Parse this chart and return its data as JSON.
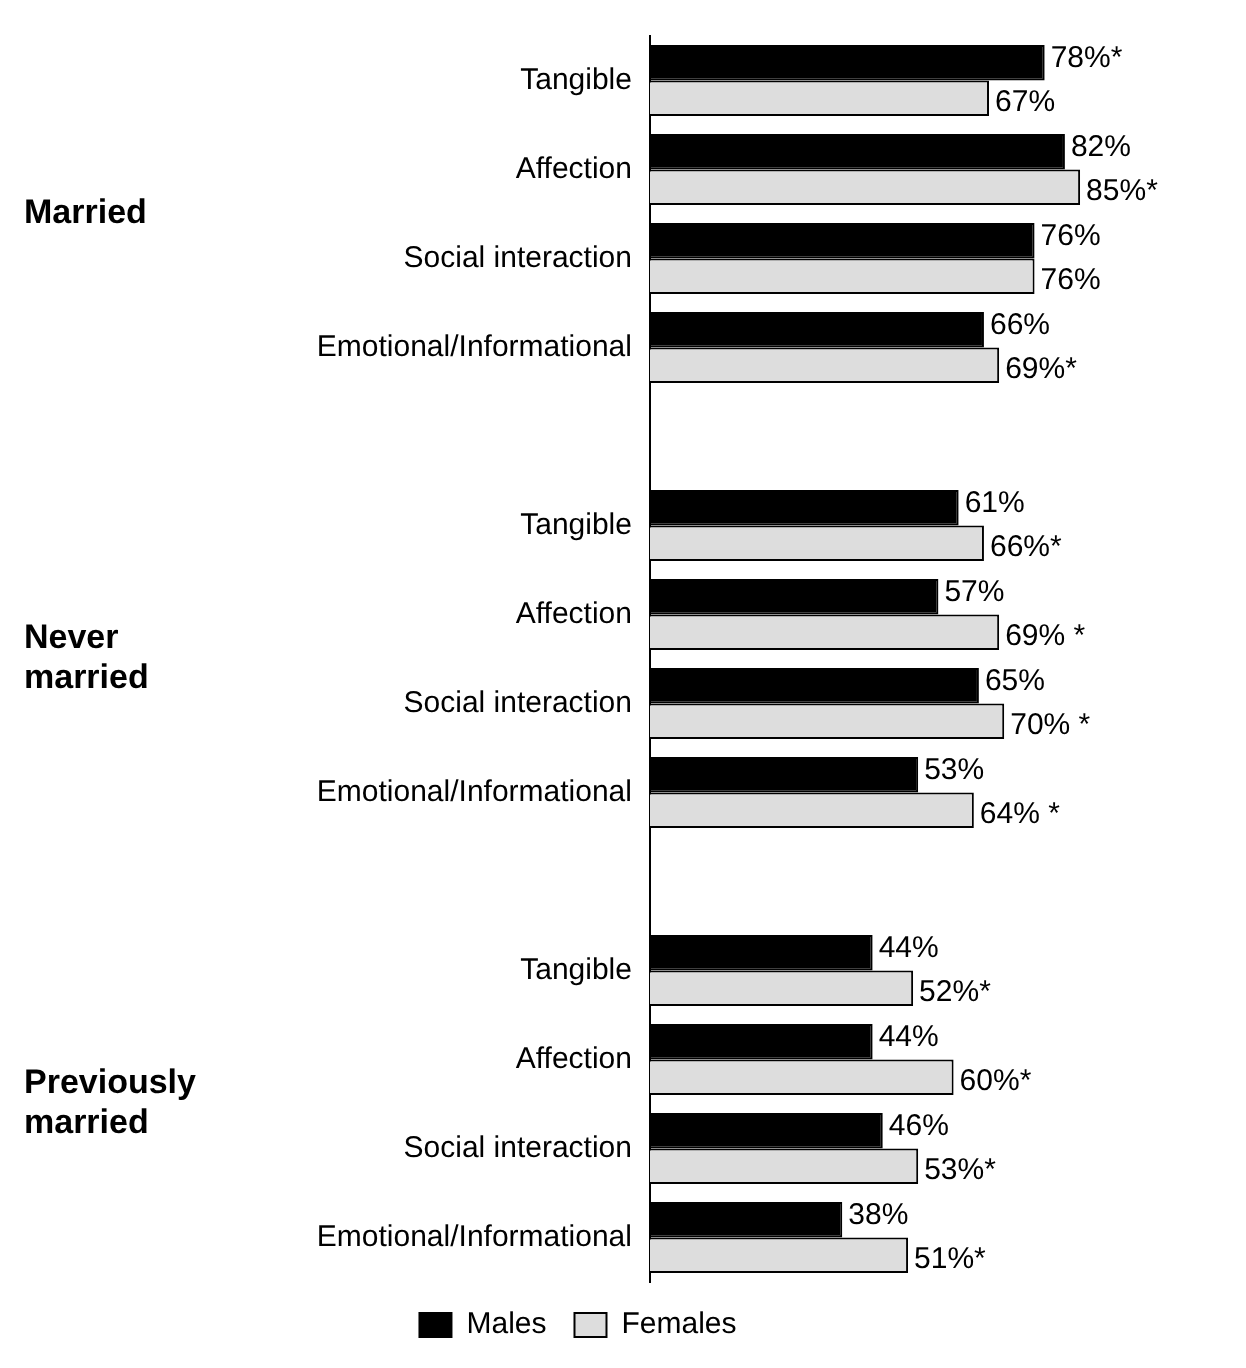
{
  "chart_data": {
    "type": "bar",
    "orientation": "horizontal",
    "categories": [
      "Tangible",
      "Affection",
      "Social interaction",
      "Emotional/Informational",
      null,
      "Tangible",
      "Affection",
      "Social interaction",
      "Emotional/Informational",
      null,
      "Tangible",
      "Affection",
      "Social interaction",
      "Emotional/Informational"
    ],
    "series": [
      {
        "name": "Males",
        "color": "#000000",
        "values": [
          78,
          82,
          76,
          66,
          null,
          61,
          57,
          65,
          53,
          null,
          44,
          44,
          46,
          38
        ],
        "value_labels": [
          "78%*",
          "82%",
          "76%",
          "66%",
          null,
          "61%",
          "57%",
          "65%",
          "53%",
          null,
          "44%",
          "44%",
          "46%",
          "38%"
        ]
      },
      {
        "name": "Females",
        "color": "#dddddd",
        "values": [
          67,
          85,
          76,
          69,
          null,
          66,
          69,
          70,
          64,
          null,
          52,
          60,
          53,
          51
        ],
        "value_labels": [
          "67%",
          "85%*",
          "76%",
          "69%*",
          null,
          "66%*",
          "69% *",
          "70% *",
          "64% *",
          null,
          "52%*",
          "60%*",
          "53%*",
          "51%*"
        ]
      }
    ],
    "annotations": [
      "Married",
      "Never married",
      "Previously married"
    ],
    "legend": "bottom"
  }
}
